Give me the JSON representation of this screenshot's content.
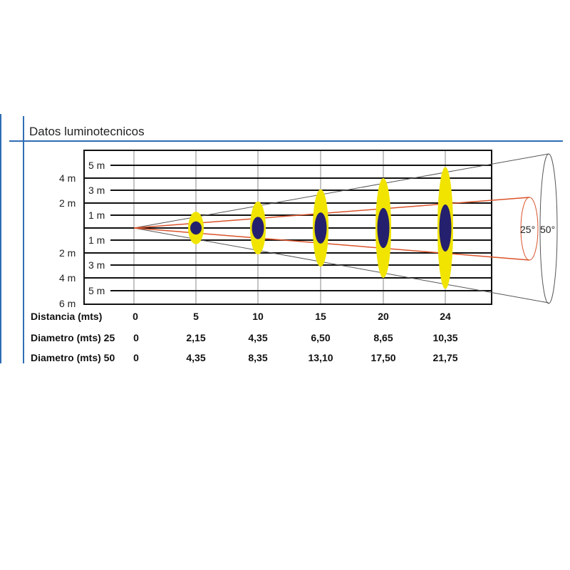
{
  "title": "Datos luminotecnicos",
  "scale_inner_labels": [
    "5 m",
    "3 m",
    "1 m",
    "1 m",
    "3 m",
    "5 m"
  ],
  "scale_outer_labels": [
    "4 m",
    "2 m",
    "2 m",
    "4 m",
    "6 m"
  ],
  "angle_labels": {
    "narrow": "25°",
    "wide": "50°"
  },
  "colors": {
    "accent": "#2f6db5",
    "spot_outer": "#f1e400",
    "spot_inner": "#25206e",
    "beam_narrow": "#d9532a",
    "beam_wide": "#555555"
  },
  "table": {
    "rows": [
      {
        "label": "Distancia (mts)",
        "values": [
          "0",
          "5",
          "10",
          "15",
          "20",
          "24"
        ]
      },
      {
        "label": "Diametro (mts) 25",
        "values": [
          "0",
          "2,15",
          "4,35",
          "6,50",
          "8,65",
          "10,35"
        ]
      },
      {
        "label": "Diametro (mts) 50",
        "values": [
          "0",
          "4,35",
          "8,35",
          "13,10",
          "17,50",
          "21,75"
        ]
      }
    ]
  },
  "chart_data": {
    "type": "diagram",
    "distances": [
      0,
      5,
      10,
      15,
      20,
      24
    ],
    "diameter_25": [
      0,
      2.15,
      4.35,
      6.5,
      8.65,
      10.35
    ],
    "diameter_50": [
      0,
      4.35,
      8.35,
      13.1,
      17.5,
      21.75
    ]
  }
}
